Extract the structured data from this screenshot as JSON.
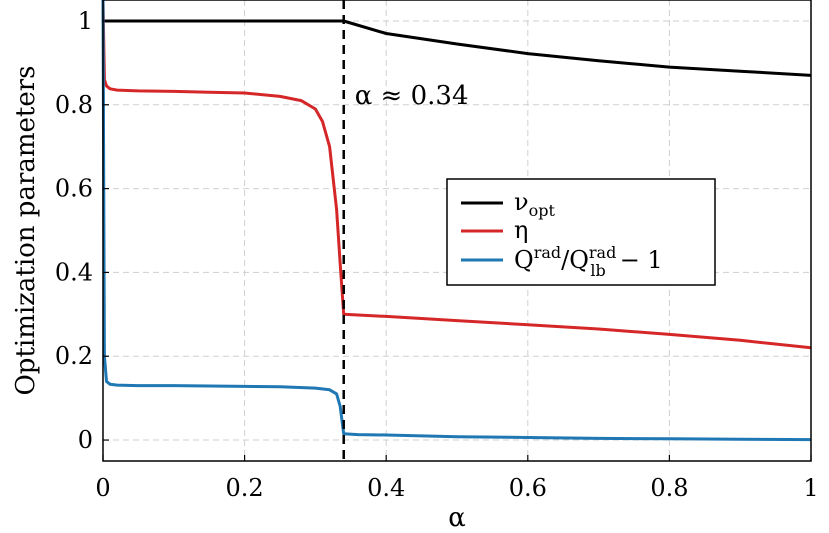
{
  "chart_data": {
    "type": "line",
    "xlabel": "α",
    "ylabel": "Optimization parameters",
    "xlim": [
      0,
      1
    ],
    "ylim": [
      -0.05,
      1.05
    ],
    "x_ticks": [
      0,
      0.2,
      0.4,
      0.6,
      0.8,
      1
    ],
    "x_tick_labels": [
      "0",
      "0.2",
      "0.4",
      "0.6",
      "0.8",
      "1"
    ],
    "y_ticks": [
      0,
      0.2,
      0.4,
      0.6,
      0.8,
      1
    ],
    "y_tick_labels": [
      "0",
      "0.2",
      "0.4",
      "0.6",
      "0.8",
      "1"
    ],
    "grid": true,
    "legend_position": "center-right",
    "annotation": {
      "text": "α ≈ 0.34",
      "x": 0.34
    },
    "series": [
      {
        "name": "ν_opt",
        "color": "#000000",
        "x": [
          0,
          0.1,
          0.2,
          0.3,
          0.34,
          0.4,
          0.5,
          0.6,
          0.7,
          0.8,
          0.9,
          1.0
        ],
        "y": [
          1.0,
          1.0,
          1.0,
          1.0,
          1.0,
          0.97,
          0.945,
          0.922,
          0.905,
          0.89,
          0.88,
          0.87
        ]
      },
      {
        "name": "η",
        "color": "#d62728",
        "x": [
          0,
          0.002,
          0.005,
          0.01,
          0.02,
          0.05,
          0.1,
          0.15,
          0.2,
          0.25,
          0.28,
          0.3,
          0.31,
          0.32,
          0.33,
          0.335,
          0.34,
          0.4,
          0.5,
          0.6,
          0.7,
          0.8,
          0.9,
          1.0
        ],
        "y": [
          1.05,
          0.86,
          0.845,
          0.838,
          0.835,
          0.833,
          0.832,
          0.83,
          0.828,
          0.82,
          0.81,
          0.79,
          0.76,
          0.7,
          0.55,
          0.42,
          0.3,
          0.295,
          0.285,
          0.275,
          0.265,
          0.252,
          0.238,
          0.22
        ]
      },
      {
        "name": "Q^rad/Q^rad_lb − 1",
        "color": "#1f77b4",
        "x": [
          0,
          0.002,
          0.005,
          0.01,
          0.02,
          0.05,
          0.1,
          0.15,
          0.2,
          0.25,
          0.3,
          0.32,
          0.33,
          0.335,
          0.34,
          0.36,
          0.4,
          0.5,
          0.6,
          0.7,
          0.8,
          0.9,
          1.0
        ],
        "y": [
          1.05,
          0.2,
          0.14,
          0.133,
          0.131,
          0.13,
          0.13,
          0.129,
          0.128,
          0.127,
          0.124,
          0.12,
          0.11,
          0.08,
          0.015,
          0.013,
          0.012,
          0.008,
          0.006,
          0.004,
          0.003,
          0.002,
          0.001
        ]
      }
    ]
  }
}
